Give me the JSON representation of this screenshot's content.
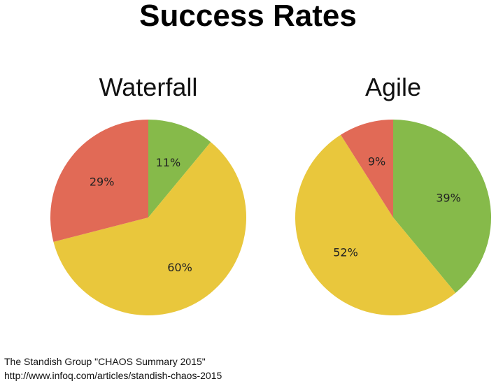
{
  "title": "Success Rates",
  "source": {
    "line1": "The Standish Group \"CHAOS Summary 2015\"",
    "line2": "http://www.infoq.com/articles/standish-chaos-2015"
  },
  "chart_data": [
    {
      "type": "pie",
      "title": "Waterfall",
      "slices": [
        {
          "label": "11%",
          "value": 11,
          "color": "#86ba4a"
        },
        {
          "label": "60%",
          "value": 60,
          "color": "#e9c73c"
        },
        {
          "label": "29%",
          "value": 29,
          "color": "#e16a56"
        }
      ]
    },
    {
      "type": "pie",
      "title": "Agile",
      "slices": [
        {
          "label": "39%",
          "value": 39,
          "color": "#86ba4a"
        },
        {
          "label": "52%",
          "value": 52,
          "color": "#e9c73c"
        },
        {
          "label": "9%",
          "value": 9,
          "color": "#e16a56"
        }
      ]
    }
  ]
}
